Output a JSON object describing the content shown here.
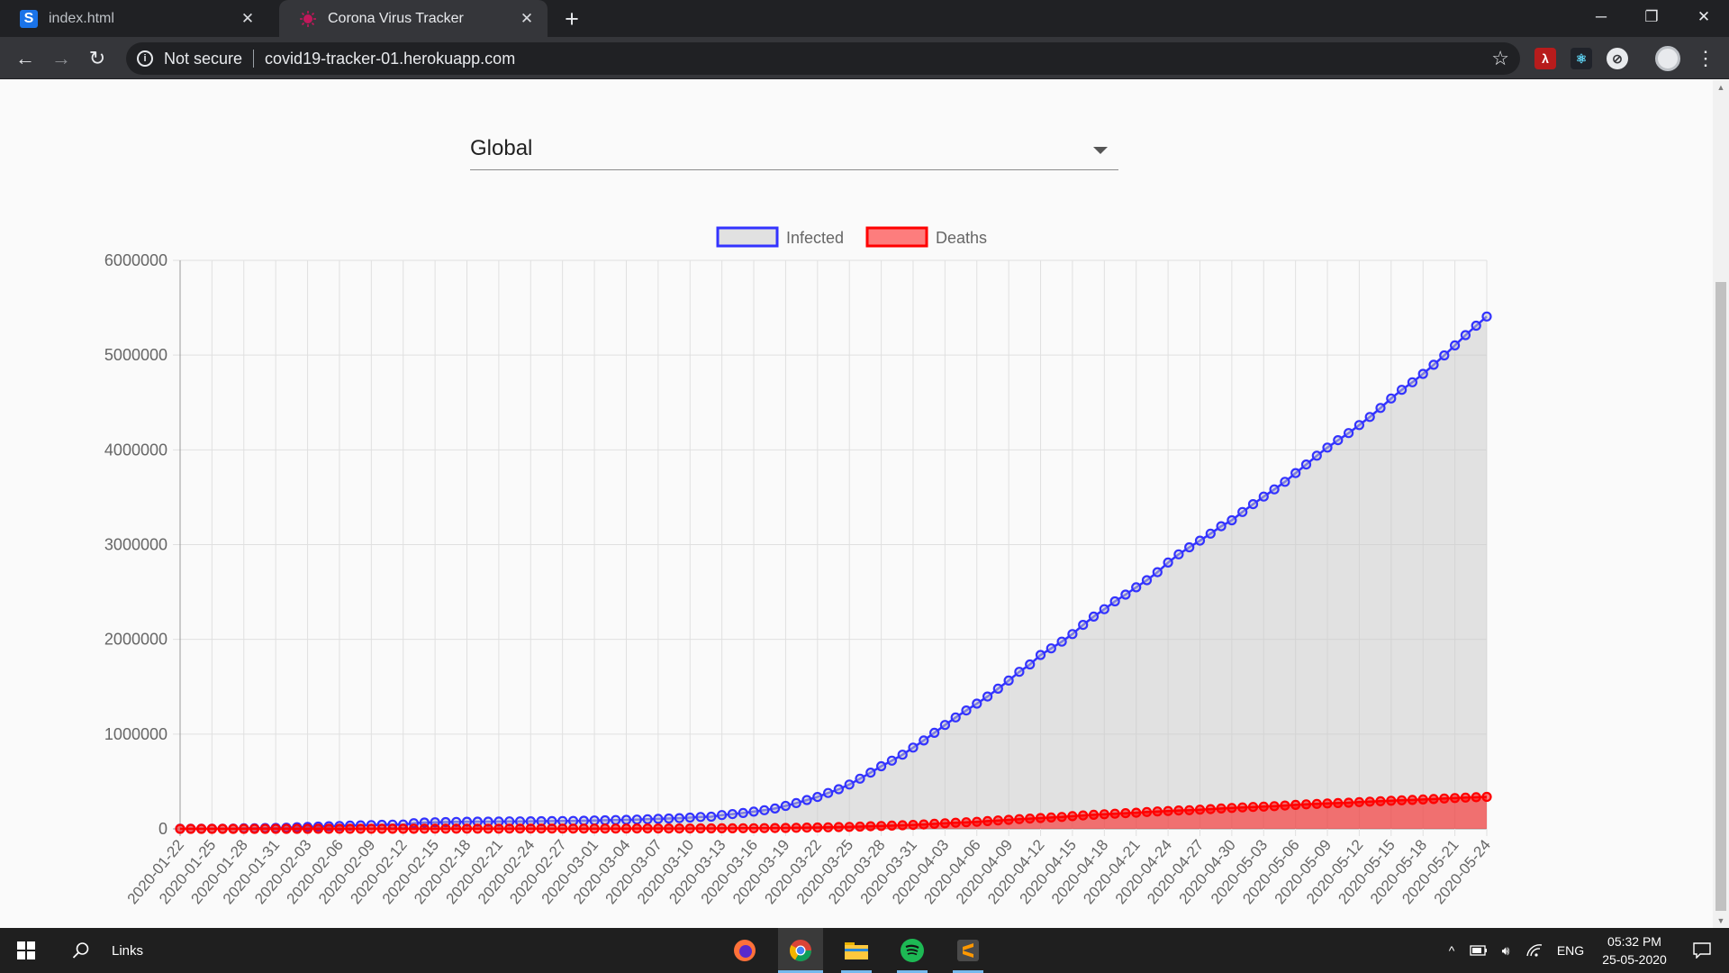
{
  "browser": {
    "tabs": [
      {
        "title": "index.html",
        "active": false
      },
      {
        "title": "Corona Virus Tracker",
        "active": true
      }
    ],
    "security_label": "Not secure",
    "url": "covid19-tracker-01.herokuapp.com"
  },
  "page": {
    "country_select": {
      "value": "Global"
    }
  },
  "chart_data": {
    "type": "line",
    "legend_position": "top",
    "grid": true,
    "ylim": [
      0,
      6000000
    ],
    "yticks": [
      "6000000",
      "5000000",
      "4000000",
      "3000000",
      "2000000",
      "1000000",
      "0"
    ],
    "x": [
      "2020-01-22",
      "2020-01-23",
      "2020-01-24",
      "2020-01-25",
      "2020-01-26",
      "2020-01-27",
      "2020-01-28",
      "2020-01-29",
      "2020-01-30",
      "2020-01-31",
      "2020-02-01",
      "2020-02-02",
      "2020-02-03",
      "2020-02-04",
      "2020-02-05",
      "2020-02-06",
      "2020-02-07",
      "2020-02-08",
      "2020-02-09",
      "2020-02-10",
      "2020-02-11",
      "2020-02-12",
      "2020-02-13",
      "2020-02-14",
      "2020-02-15",
      "2020-02-16",
      "2020-02-17",
      "2020-02-18",
      "2020-02-19",
      "2020-02-20",
      "2020-02-21",
      "2020-02-22",
      "2020-02-23",
      "2020-02-24",
      "2020-02-25",
      "2020-02-26",
      "2020-02-27",
      "2020-02-28",
      "2020-02-29",
      "2020-03-01",
      "2020-03-02",
      "2020-03-03",
      "2020-03-04",
      "2020-03-05",
      "2020-03-06",
      "2020-03-07",
      "2020-03-08",
      "2020-03-09",
      "2020-03-10",
      "2020-03-11",
      "2020-03-12",
      "2020-03-13",
      "2020-03-14",
      "2020-03-15",
      "2020-03-16",
      "2020-03-17",
      "2020-03-18",
      "2020-03-19",
      "2020-03-20",
      "2020-03-21",
      "2020-03-22",
      "2020-03-23",
      "2020-03-24",
      "2020-03-25",
      "2020-03-26",
      "2020-03-27",
      "2020-03-28",
      "2020-03-29",
      "2020-03-30",
      "2020-03-31",
      "2020-04-01",
      "2020-04-02",
      "2020-04-03",
      "2020-04-04",
      "2020-04-05",
      "2020-04-06",
      "2020-04-07",
      "2020-04-08",
      "2020-04-09",
      "2020-04-10",
      "2020-04-11",
      "2020-04-12",
      "2020-04-13",
      "2020-04-14",
      "2020-04-15",
      "2020-04-16",
      "2020-04-17",
      "2020-04-18",
      "2020-04-19",
      "2020-04-20",
      "2020-04-21",
      "2020-04-22",
      "2020-04-23",
      "2020-04-24",
      "2020-04-25",
      "2020-04-26",
      "2020-04-27",
      "2020-04-28",
      "2020-04-29",
      "2020-04-30",
      "2020-05-01",
      "2020-05-02",
      "2020-05-03",
      "2020-05-04",
      "2020-05-05",
      "2020-05-06",
      "2020-05-07",
      "2020-05-08",
      "2020-05-09",
      "2020-05-10",
      "2020-05-11",
      "2020-05-12",
      "2020-05-13",
      "2020-05-14",
      "2020-05-15",
      "2020-05-16",
      "2020-05-17",
      "2020-05-18",
      "2020-05-19",
      "2020-05-20",
      "2020-05-21",
      "2020-05-22",
      "2020-05-23",
      "2020-05-24"
    ],
    "x_tick_labels": [
      "2020-01-22",
      "2020-01-25",
      "2020-01-28",
      "2020-01-31",
      "2020-02-03",
      "2020-02-06",
      "2020-02-09",
      "2020-02-12",
      "2020-02-15",
      "2020-02-18",
      "2020-02-21",
      "2020-02-24",
      "2020-02-27",
      "2020-03-01",
      "2020-03-04",
      "2020-03-07",
      "2020-03-10",
      "2020-03-13",
      "2020-03-16",
      "2020-03-19",
      "2020-03-22",
      "2020-03-25",
      "2020-03-28",
      "2020-03-31",
      "2020-04-03",
      "2020-04-06",
      "2020-04-09",
      "2020-04-12",
      "2020-04-15",
      "2020-04-18",
      "2020-04-21",
      "2020-04-24",
      "2020-04-27",
      "2020-04-30",
      "2020-05-03",
      "2020-05-06",
      "2020-05-09",
      "2020-05-12",
      "2020-05-15",
      "2020-05-18",
      "2020-05-21",
      "2020-05-24"
    ],
    "series": [
      {
        "name": "Infected",
        "color": "#3333ff",
        "fill": "rgba(200,200,200,0.5)",
        "values": [
          555,
          654,
          941,
          1434,
          2118,
          2927,
          5578,
          6166,
          8234,
          9927,
          12038,
          16787,
          19881,
          23892,
          27635,
          30794,
          34391,
          37120,
          40150,
          42762,
          44802,
          45221,
          60368,
          66885,
          69030,
          71224,
          73258,
          75136,
          75639,
          76197,
          76819,
          78572,
          78958,
          79561,
          80406,
          81388,
          82746,
          84112,
          86011,
          88369,
          90306,
          92840,
          95120,
          97886,
          101800,
          105847,
          109821,
          113590,
          118620,
          125875,
          128352,
          145205,
          156101,
          167454,
          181574,
          197102,
          214821,
          242570,
          272208,
          304507,
          336953,
          378235,
          418045,
          467653,
          529591,
          593291,
          660693,
          720140,
          782389,
          857487,
          932605,
          1013157,
          1095917,
          1176060,
          1249754,
          1321481,
          1396476,
          1479804,
          1565278,
          1657526,
          1735650,
          1834721,
          1904838,
          1976191,
          2056054,
          2152437,
          2240190,
          2317759,
          2401378,
          2472259,
          2549294,
          2624074,
          2708885,
          2811193,
          2897645,
          2971475,
          3041764,
          3116398,
          3193886,
          3256846,
          3343777,
          3427343,
          3506729,
          3583055,
          3662691,
          3755341,
          3845718,
          3938064,
          4024009,
          4101699,
          4177502,
          4261747,
          4347015,
          4442163,
          4542347,
          4634068,
          4713620,
          4801943,
          4897492,
          4996472,
          5102424,
          5210817,
          5310362,
          5407613
        ]
      },
      {
        "name": "Deaths",
        "color": "#ff0000",
        "fill": "rgba(255,0,0,0.5)",
        "values": [
          17,
          18,
          26,
          42,
          56,
          82,
          131,
          133,
          171,
          213,
          259,
          362,
          426,
          492,
          564,
          634,
          719,
          806,
          906,
          1013,
          1113,
          1118,
          1371,
          1523,
          1666,
          1770,
          1868,
          2007,
          2122,
          2247,
          2251,
          2458,
          2469,
          2629,
          2708,
          2770,
          2814,
          2872,
          2941,
          2996,
          3085,
          3160,
          3254,
          3348,
          3460,
          3558,
          3803,
          3996,
          4262,
          4615,
          4720,
          5404,
          5819,
          6440,
          7126,
          7905,
          8733,
          9867,
          11299,
          12973,
          14651,
          16505,
          18625,
          21181,
          23970,
          27198,
          30652,
          33925,
          37582,
          42107,
          46809,
          52983,
          58787,
          64606,
          69374,
          74565,
          81865,
          88338,
          95455,
          102525,
          108502,
          114090,
          119482,
          125984,
          134177,
          141885,
          148590,
          153822,
          159510,
          165069,
          170426,
          177575,
          183066,
          188297,
          193703,
          197111,
          202807,
          208209,
          214611,
          220734,
          226367,
          230935,
          234564,
          239538,
          246009,
          252475,
          258292,
          263652,
          267850,
          271663,
          276057,
          282023,
          286830,
          292009,
          297049,
          301173,
          305094,
          310059,
          314877,
          320038,
          324816,
          329539,
          333966,
          337101
        ]
      }
    ]
  },
  "taskbar": {
    "links_label": "Links",
    "tray": {
      "language": "ENG",
      "time": "05:32 PM",
      "date": "25-05-2020"
    }
  }
}
